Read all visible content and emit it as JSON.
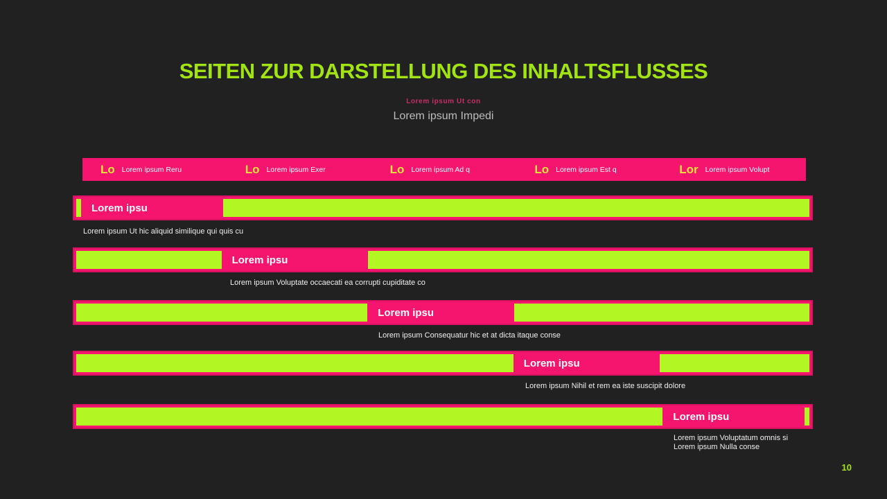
{
  "slide": {
    "title": "SEITEN ZUR DARSTELLUNG DES INHALTSFLUSSES",
    "subtitle_small": "Lorem ipsum Ut con",
    "subtitle": "Lorem ipsum Impedi",
    "page_number": "10"
  },
  "colors": {
    "background": "#212121",
    "pink": "#f5146e",
    "pink_border": "#d81161",
    "green": "#b2f724",
    "title_green": "#a2e413",
    "header_abbr_yellow": "#e9e43c",
    "subtitle_small_pink": "#c62e68",
    "subtitle_gray": "#bdbdbd"
  },
  "header": {
    "columns": [
      {
        "abbr": "Lo",
        "label": "Lorem ipsum Reru"
      },
      {
        "abbr": "Lo",
        "label": "Lorem ipsum Exer"
      },
      {
        "abbr": "Lo",
        "label": "Lorem ipsum Ad q"
      },
      {
        "abbr": "Lo",
        "label": "Lorem ipsum Est q"
      },
      {
        "abbr": "Lor",
        "label": "Lorem ipsum Volupt"
      }
    ]
  },
  "rows": [
    {
      "label": "Lorem ipsu",
      "caption": "Lorem ipsum Ut hic aliquid similique qui quis cu"
    },
    {
      "label": "Lorem ipsu",
      "caption": "Lorem ipsum Voluptate occaecati ea corrupti cupiditate co"
    },
    {
      "label": "Lorem ipsu",
      "caption": "Lorem ipsum Consequatur hic et at dicta itaque conse"
    },
    {
      "label": "Lorem ipsu",
      "caption": "Lorem ipsum Nihil et rem ea iste suscipit dolore"
    },
    {
      "label": "Lorem ipsu",
      "caption": "Lorem ipsum Voluptatum omnis si",
      "caption2": "Lorem ipsum Nulla conse"
    }
  ]
}
